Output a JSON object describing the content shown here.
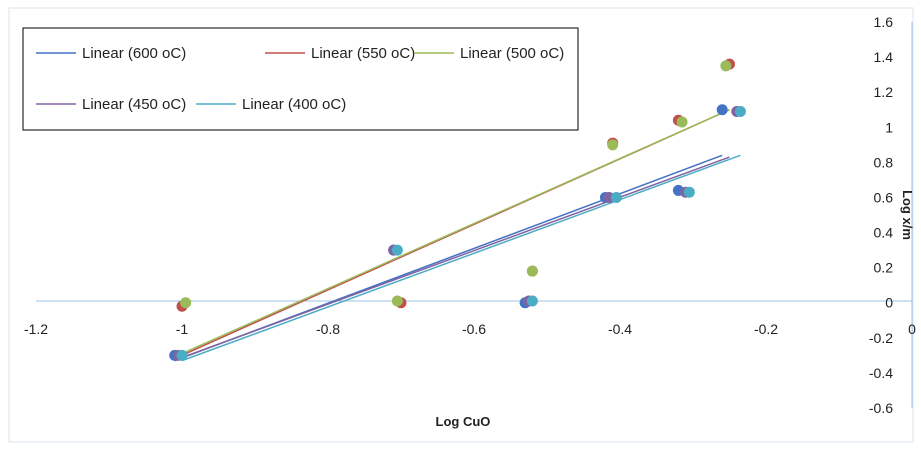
{
  "chart_data": {
    "type": "scatter",
    "title": "",
    "xlabel": "Log CuO",
    "ylabel": "Log x/m",
    "xlim": [
      -1.2,
      0
    ],
    "ylim": [
      -0.6,
      1.6
    ],
    "x_ticks": [
      "-1.2",
      "-1",
      "-0.8",
      "-0.6",
      "-0.4",
      "-0.2",
      "0"
    ],
    "y_ticks": [
      "-0.6",
      "-0.4",
      "-0.2",
      "0",
      "0.2",
      "0.4",
      "0.6",
      "0.8",
      "1",
      "1.2",
      "1.4",
      "1.6"
    ],
    "grid": false,
    "legend_position": "top-left",
    "series": [
      {
        "name": "600 oC",
        "color": "#4472C4",
        "points": [
          [
            -1.01,
            -0.3
          ],
          [
            -0.71,
            0.3
          ],
          [
            -0.53,
            0.0
          ],
          [
            -0.42,
            0.6
          ],
          [
            -0.32,
            0.64
          ],
          [
            -0.26,
            1.1
          ]
        ],
        "trendline": {
          "label": "Linear (600 oC)",
          "x": [
            -1.01,
            -0.26
          ],
          "y": [
            -0.33,
            0.84
          ]
        }
      },
      {
        "name": "550 oC",
        "color": "#C0504D",
        "points": [
          [
            -1.0,
            -0.02
          ],
          [
            -0.7,
            0.0
          ],
          [
            -0.52,
            0.18
          ],
          [
            -0.41,
            0.91
          ],
          [
            -0.32,
            1.04
          ],
          [
            -0.25,
            1.36
          ]
        ],
        "trendline": {
          "label": "Linear (550 oC)",
          "x": [
            -1.0,
            -0.25
          ],
          "y": [
            -0.3,
            1.1
          ]
        }
      },
      {
        "name": "500 oC",
        "color": "#9BBB59",
        "points": [
          [
            -0.995,
            0.0
          ],
          [
            -0.705,
            0.01
          ],
          [
            -0.52,
            0.18
          ],
          [
            -0.41,
            0.9
          ],
          [
            -0.315,
            1.03
          ],
          [
            -0.255,
            1.35
          ]
        ],
        "trendline": {
          "label": "Linear (500 oC)",
          "x": [
            -1.0,
            -0.25
          ],
          "y": [
            -0.29,
            1.1
          ]
        }
      },
      {
        "name": "450 oC",
        "color": "#8064A2",
        "points": [
          [
            -1.005,
            -0.3
          ],
          [
            -0.71,
            0.3
          ],
          [
            -0.525,
            0.01
          ],
          [
            -0.415,
            0.6
          ],
          [
            -0.31,
            0.63
          ],
          [
            -0.24,
            1.09
          ]
        ],
        "trendline": {
          "label": "Linear (450 oC)",
          "x": [
            -1.005,
            -0.25
          ],
          "y": [
            -0.32,
            0.83
          ]
        }
      },
      {
        "name": "400 oC",
        "color": "#4BACC6",
        "points": [
          [
            -1.0,
            -0.3
          ],
          [
            -0.705,
            0.3
          ],
          [
            -0.52,
            0.01
          ],
          [
            -0.405,
            0.6
          ],
          [
            -0.305,
            0.63
          ],
          [
            -0.235,
            1.09
          ]
        ],
        "trendline": {
          "label": "Linear (400 oC)",
          "x": [
            -1.0,
            -0.235
          ],
          "y": [
            -0.33,
            0.84
          ]
        }
      }
    ]
  }
}
